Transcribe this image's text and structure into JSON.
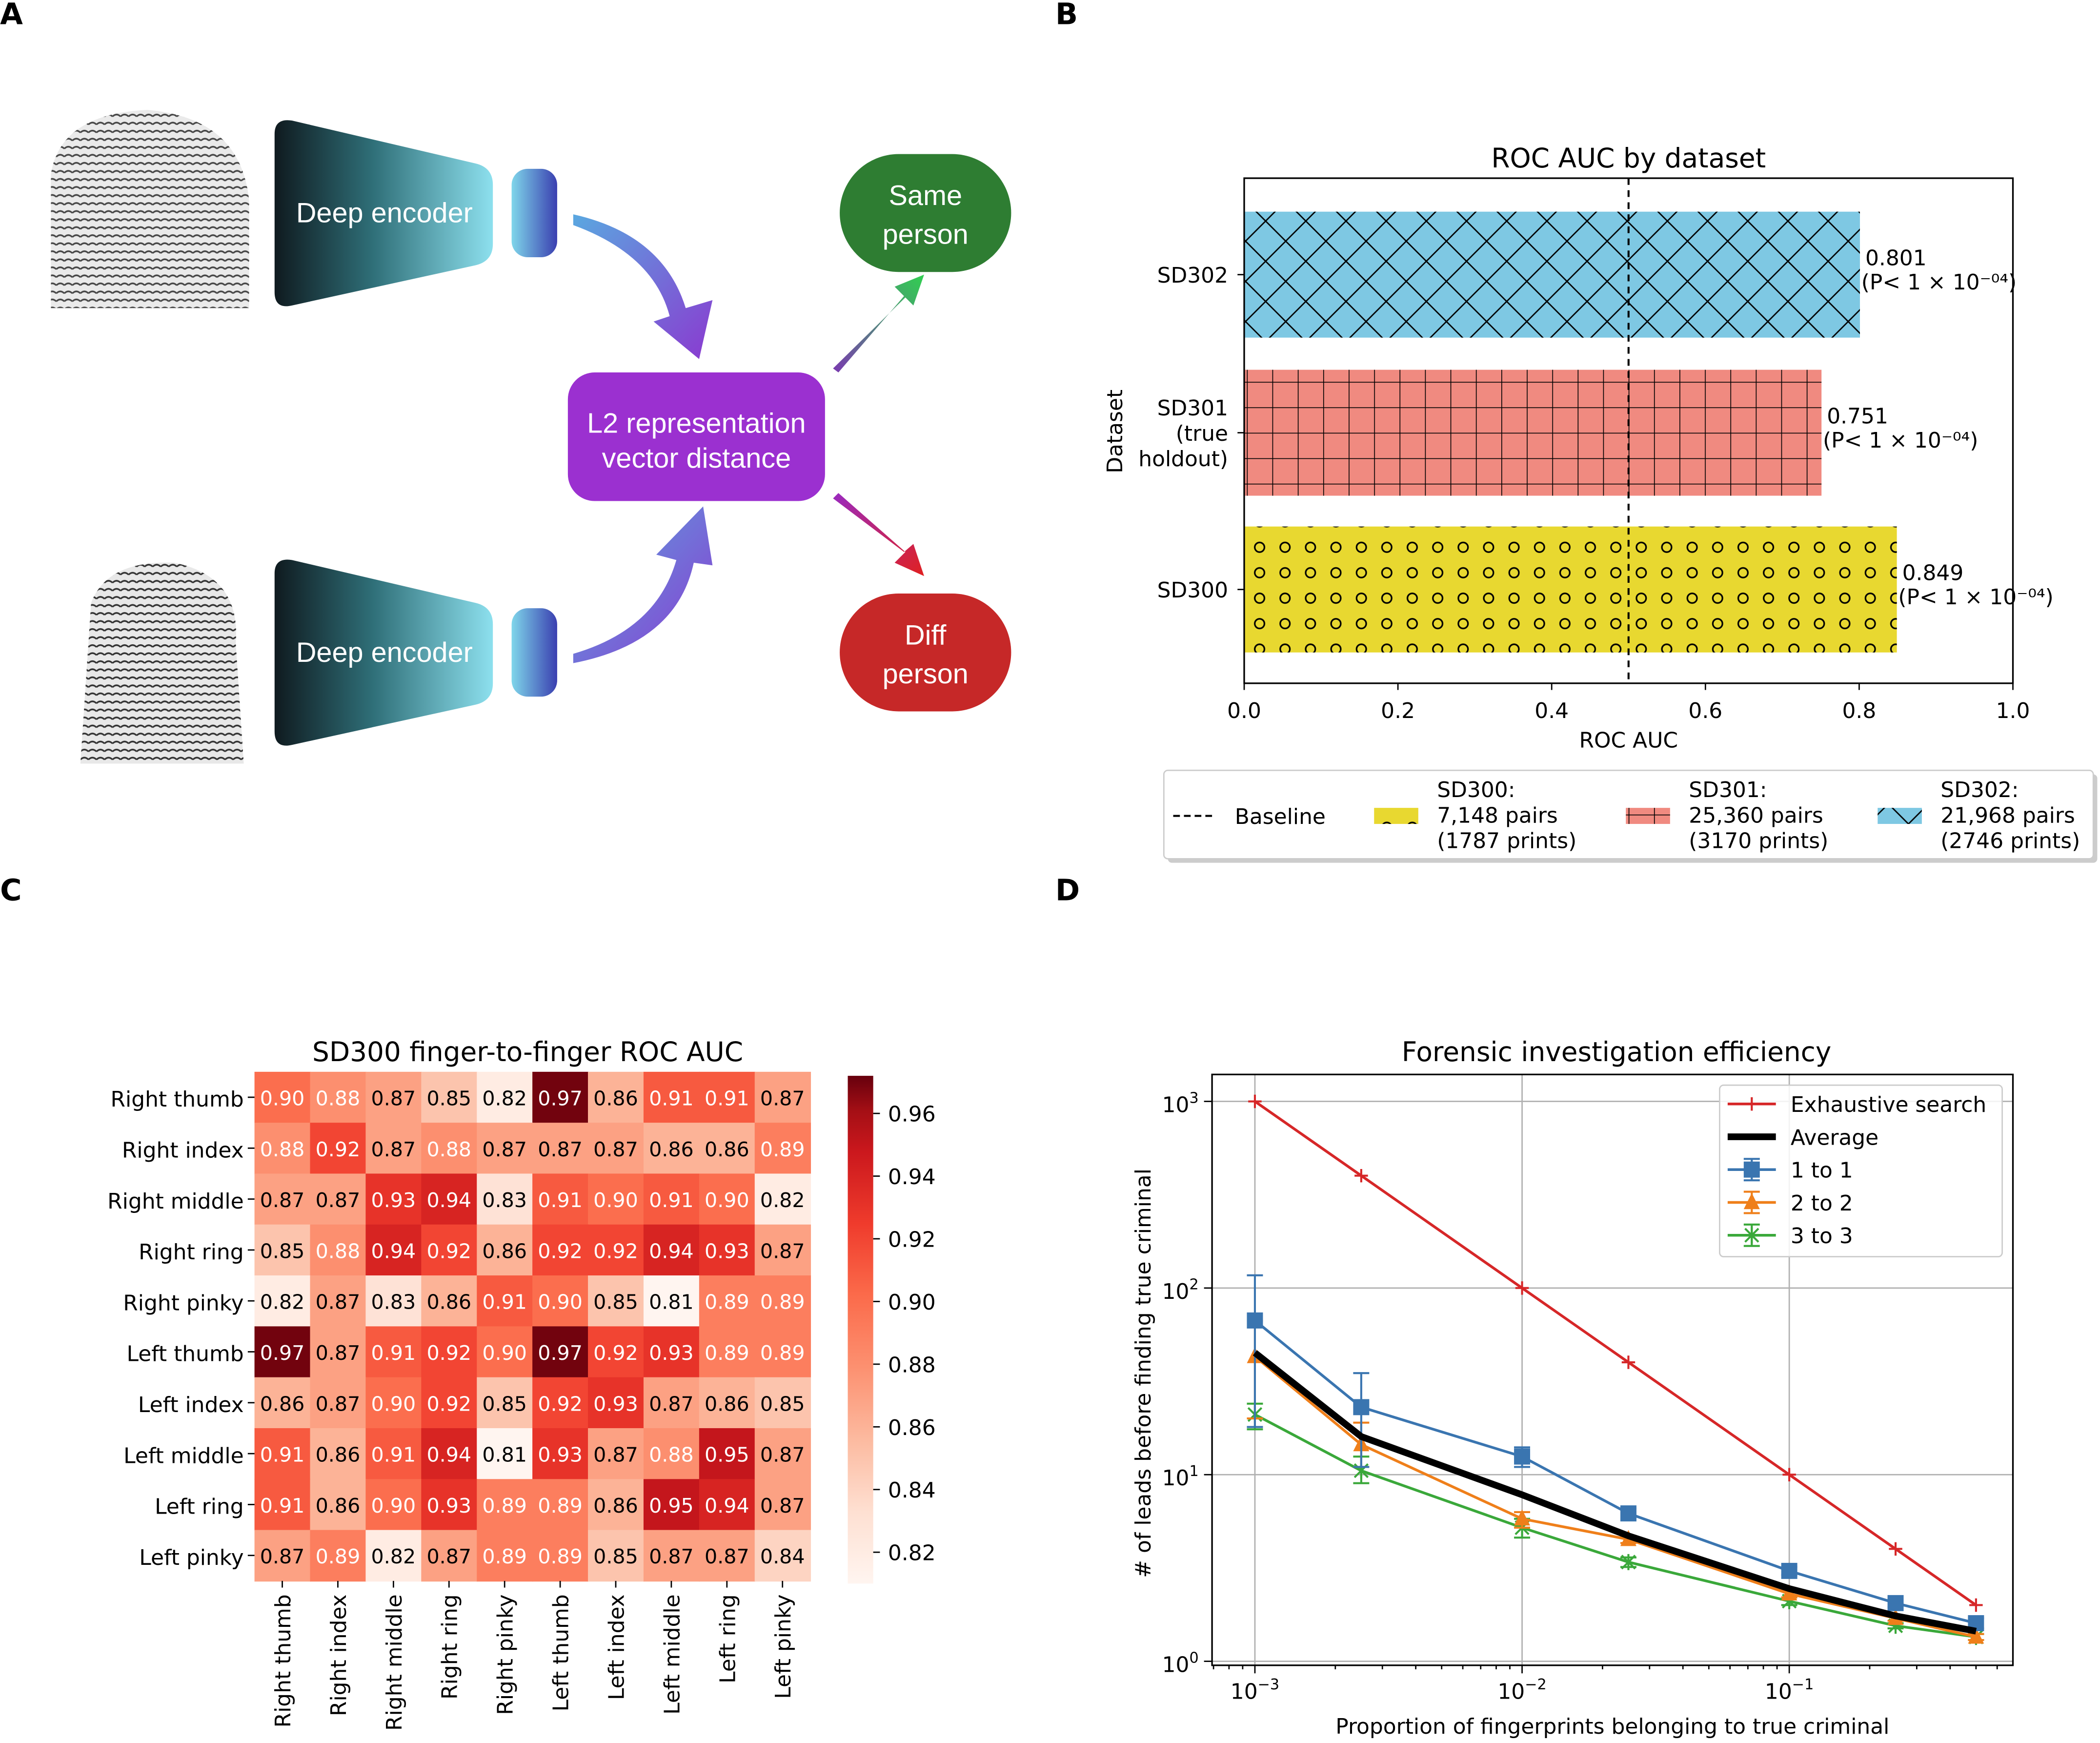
{
  "panels": {
    "a": "A",
    "b": "B",
    "c": "C",
    "d": "D"
  },
  "panel_a": {
    "encoder_top": "Deep encoder",
    "encoder_bottom": "Deep encoder",
    "distance_line1": "L2 representation",
    "distance_line2": "vector distance",
    "same_line1": "Same",
    "same_line2": "person",
    "diff_line1": "Diff",
    "diff_line2": "person",
    "colors": {
      "encoder_dark": "#0f1a1f",
      "encoder_light": "#8de0ee",
      "distance_box": "#9b30d0",
      "same": "#2e7d32",
      "diff": "#c62828"
    }
  },
  "chart_data": [
    {
      "type": "bar",
      "orientation": "horizontal",
      "title": "ROC AUC by dataset",
      "xlabel": "ROC AUC",
      "ylabel": "Dataset",
      "xlim": [
        0,
        1.0
      ],
      "xticks": [
        "0.0",
        "0.2",
        "0.4",
        "0.6",
        "0.8",
        "1.0"
      ],
      "baseline": 0.5,
      "categories": [
        {
          "label": [
            "SD302"
          ],
          "value": 0.801,
          "value_label": "0.801",
          "p_label": "(P< 1 × 10⁻⁰⁴)",
          "color": "#7ec8e3",
          "hatch": "crosshatch"
        },
        {
          "label": [
            "SD301",
            "(true",
            "holdout)"
          ],
          "value": 0.751,
          "value_label": "0.751",
          "p_label": "(P< 1 × 10⁻⁰⁴)",
          "color": "#f08a80",
          "hatch": "grid"
        },
        {
          "label": [
            "SD300"
          ],
          "value": 0.849,
          "value_label": "0.849",
          "p_label": "(P< 1 × 10⁻⁰⁴)",
          "color": "#e8d830",
          "hatch": "circles"
        }
      ],
      "legend": {
        "placement": "bottom",
        "baseline_label": "Baseline",
        "entries": [
          {
            "lines": [
              "SD300:",
              "7,148 pairs",
              "(1787 prints)"
            ],
            "hatch": "circles",
            "color": "#e8d830"
          },
          {
            "lines": [
              "SD301:",
              "25,360 pairs",
              "(3170 prints)"
            ],
            "hatch": "grid",
            "color": "#f08a80"
          },
          {
            "lines": [
              "SD302:",
              "21,968 pairs",
              "(2746 prints)"
            ],
            "hatch": "crosshatch",
            "color": "#7ec8e3"
          }
        ]
      }
    },
    {
      "type": "heatmap",
      "title": "SD300 finger-to-finger ROC AUC",
      "rows": [
        "Right  thumb",
        "Right index",
        "Right middle",
        "Right ring",
        "Right pinky",
        "Left thumb",
        "Left index",
        "Left middle",
        "Left ring",
        "Left pinky"
      ],
      "columns": [
        "Right  thumb",
        "Right index",
        "Right middle",
        "Right ring",
        "Right pinky",
        "Left thumb",
        "Left index",
        "Left middle",
        "Left ring",
        "Left pinky"
      ],
      "values": [
        [
          0.9,
          0.88,
          0.87,
          0.85,
          0.82,
          0.97,
          0.86,
          0.91,
          0.91,
          0.87
        ],
        [
          0.88,
          0.92,
          0.87,
          0.88,
          0.87,
          0.87,
          0.87,
          0.86,
          0.86,
          0.89
        ],
        [
          0.87,
          0.87,
          0.93,
          0.94,
          0.83,
          0.91,
          0.9,
          0.91,
          0.9,
          0.82
        ],
        [
          0.85,
          0.88,
          0.94,
          0.92,
          0.86,
          0.92,
          0.92,
          0.94,
          0.93,
          0.87
        ],
        [
          0.82,
          0.87,
          0.83,
          0.86,
          0.91,
          0.9,
          0.85,
          0.81,
          0.89,
          0.89
        ],
        [
          0.97,
          0.87,
          0.91,
          0.92,
          0.9,
          0.97,
          0.92,
          0.93,
          0.89,
          0.89
        ],
        [
          0.86,
          0.87,
          0.9,
          0.92,
          0.85,
          0.92,
          0.93,
          0.87,
          0.86,
          0.85
        ],
        [
          0.91,
          0.86,
          0.91,
          0.94,
          0.81,
          0.93,
          0.87,
          0.88,
          0.95,
          0.87
        ],
        [
          0.91,
          0.86,
          0.9,
          0.93,
          0.89,
          0.89,
          0.86,
          0.95,
          0.94,
          0.87
        ],
        [
          0.87,
          0.89,
          0.82,
          0.87,
          0.89,
          0.89,
          0.85,
          0.87,
          0.87,
          0.84
        ]
      ],
      "colormap": "Reds",
      "colorbar_range": [
        0.81,
        0.972
      ],
      "colorbar_ticks": [
        "0.96",
        "0.94",
        "0.92",
        "0.90",
        "0.88",
        "0.86",
        "0.84",
        "0.82"
      ]
    },
    {
      "type": "line",
      "title": "Forensic investigation efficiency",
      "xlabel": "Proportion of fingerprints belonging to true criminal",
      "ylabel": "# of leads before finding true criminal",
      "xscale": "log",
      "yscale": "log",
      "xlim": [
        0.00072,
        0.6
      ],
      "ylim": [
        0.98,
        1400
      ],
      "xticks": [
        {
          "v": 0.001,
          "base": "10",
          "exp": "−3"
        },
        {
          "v": 0.01,
          "base": "10",
          "exp": "−2"
        },
        {
          "v": 0.1,
          "base": "10",
          "exp": "−1"
        }
      ],
      "yticks": [
        {
          "v": 1,
          "base": "10",
          "exp": "0"
        },
        {
          "v": 10,
          "base": "10",
          "exp": "1"
        },
        {
          "v": 100,
          "base": "10",
          "exp": "2"
        },
        {
          "v": 1000,
          "base": "10",
          "exp": "3"
        }
      ],
      "grid": true,
      "legend_placement": "top-right",
      "x": [
        0.001,
        0.0025,
        0.01,
        0.025,
        0.1,
        0.25,
        0.5
      ],
      "series": [
        {
          "name": "Exhaustive search",
          "color": "#d62728",
          "marker": "plus",
          "values": [
            1000,
            400,
            100,
            40,
            10,
            4,
            2
          ]
        },
        {
          "name": "Average",
          "color": "#000000",
          "marker": "none",
          "values": [
            45,
            16,
            7.8,
            4.7,
            2.45,
            1.75,
            1.45
          ]
        },
        {
          "name": "1 to 1",
          "color": "#3a75b0",
          "marker": "square",
          "values": [
            67,
            23,
            12.5,
            6.2,
            3.05,
            2.05,
            1.6
          ],
          "err_low": [
            18,
            11,
            11,
            5.8,
            2.9,
            1.95,
            1.5
          ],
          "err_high": [
            117,
            35,
            14,
            6.6,
            3.2,
            2.15,
            1.7
          ]
        },
        {
          "name": "2 to 2",
          "color": "#ef7f1a",
          "marker": "triangle",
          "values": [
            43,
            14.5,
            5.8,
            4.5,
            2.3,
            1.7,
            1.35
          ],
          "err_low": [
            20,
            11,
            5.2,
            4.3,
            2.2,
            1.65,
            1.3
          ],
          "err_high": [
            67,
            19,
            6.3,
            4.7,
            2.4,
            1.75,
            1.4
          ]
        },
        {
          "name": "3 to 3",
          "color": "#3aa83a",
          "marker": "x",
          "values": [
            21,
            10.5,
            5.2,
            3.4,
            2.1,
            1.55,
            1.35
          ],
          "err_low": [
            17.5,
            9,
            4.6,
            3.2,
            2.0,
            1.5,
            1.3
          ],
          "err_high": [
            24,
            12.5,
            5.8,
            3.6,
            2.2,
            1.6,
            1.4
          ]
        }
      ]
    }
  ]
}
